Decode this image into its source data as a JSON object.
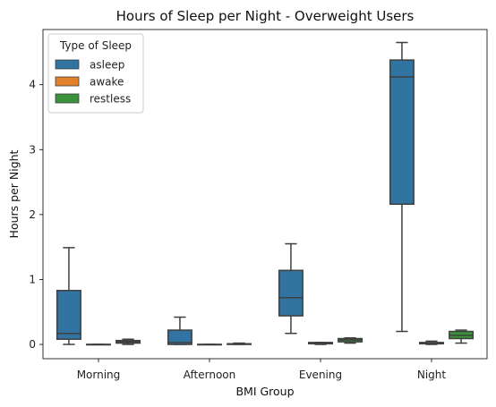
{
  "chart_data": {
    "type": "box",
    "title": "Hours of Sleep per Night - Overweight Users",
    "xlabel": "BMI Group",
    "ylabel": "Hours per Night",
    "categories": [
      "Morning",
      "Afternoon",
      "Evening",
      "Night"
    ],
    "ylim": [
      -0.22,
      4.85
    ],
    "yticks": [
      0,
      1,
      2,
      3,
      4
    ],
    "grid": false,
    "legend": {
      "title": "Type of Sleep",
      "placement": "top-left",
      "entries": [
        "asleep",
        "awake",
        "restless"
      ]
    },
    "colors": {
      "asleep": "#3274a1",
      "awake": "#e1812c",
      "restless": "#3a923a",
      "edge": "#3f3f3f"
    },
    "series": [
      {
        "name": "asleep",
        "boxes": [
          {
            "min": 0.0,
            "q1": 0.08,
            "median": 0.17,
            "q3": 0.83,
            "max": 1.49
          },
          {
            "min": 0.0,
            "q1": 0.0,
            "median": 0.03,
            "q3": 0.22,
            "max": 0.42
          },
          {
            "min": 0.17,
            "q1": 0.44,
            "median": 0.72,
            "q3": 1.14,
            "max": 1.55
          },
          {
            "min": 0.2,
            "q1": 2.16,
            "median": 4.12,
            "q3": 4.38,
            "max": 4.65
          }
        ]
      },
      {
        "name": "awake",
        "boxes": [
          {
            "min": 0.0,
            "q1": 0.0,
            "median": 0.0,
            "q3": 0.0,
            "max": 0.0
          },
          {
            "min": 0.0,
            "q1": 0.0,
            "median": 0.0,
            "q3": 0.0,
            "max": 0.0
          },
          {
            "min": 0.0,
            "q1": 0.01,
            "median": 0.02,
            "q3": 0.03,
            "max": 0.03
          },
          {
            "min": 0.0,
            "q1": 0.01,
            "median": 0.02,
            "q3": 0.03,
            "max": 0.05
          }
        ]
      },
      {
        "name": "restless",
        "boxes": [
          {
            "min": 0.0,
            "q1": 0.02,
            "median": 0.04,
            "q3": 0.06,
            "max": 0.08
          },
          {
            "min": 0.0,
            "q1": 0.0,
            "median": 0.01,
            "q3": 0.01,
            "max": 0.02
          },
          {
            "min": 0.02,
            "q1": 0.04,
            "median": 0.07,
            "q3": 0.09,
            "max": 0.1
          },
          {
            "min": 0.02,
            "q1": 0.09,
            "median": 0.14,
            "q3": 0.2,
            "max": 0.22
          }
        ]
      }
    ]
  }
}
